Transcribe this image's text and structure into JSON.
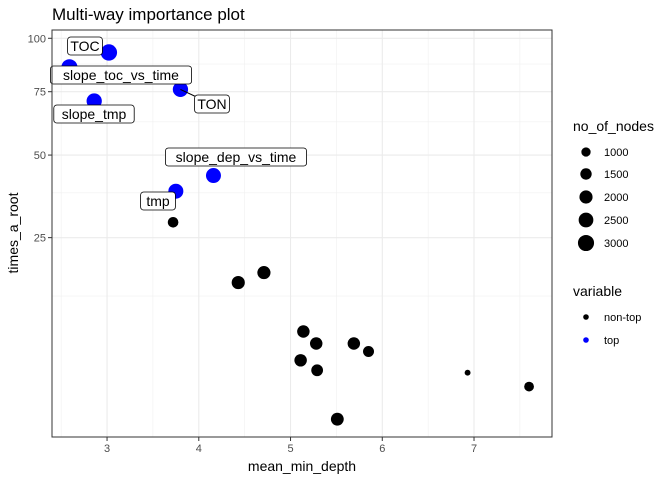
{
  "chart_data": {
    "type": "scatter",
    "title": "Multi-way importance plot",
    "xlabel": "mean_min_depth",
    "ylabel": "times_a_root",
    "x_scale": "linear",
    "y_scale": "sqrt",
    "xlim": [
      2.4,
      7.85
    ],
    "ylim": [
      0,
      100
    ],
    "x_ticks": [
      3,
      4,
      5,
      6,
      7
    ],
    "y_ticks": [
      25,
      50,
      75,
      100
    ],
    "grid": true,
    "points": [
      {
        "x": 3.02,
        "y": 93,
        "nodes": 3100,
        "variable": "top",
        "label": "TOC"
      },
      {
        "x": 2.59,
        "y": 86,
        "nodes": 3000,
        "variable": "top",
        "label": "slope_toc_vs_time"
      },
      {
        "x": 3.8,
        "y": 76,
        "nodes": 2700,
        "variable": "top",
        "label": "TON"
      },
      {
        "x": 2.86,
        "y": 71,
        "nodes": 2700,
        "variable": "top",
        "label": "slope_tmp"
      },
      {
        "x": 4.16,
        "y": 43,
        "nodes": 2600,
        "variable": "top",
        "label": "slope_dep_vs_time"
      },
      {
        "x": 3.75,
        "y": 38,
        "nodes": 2600,
        "variable": "top",
        "label": ""
      },
      {
        "x": 3.72,
        "y": 29,
        "nodes": 1300,
        "variable": "non-top",
        "label": "tmp"
      },
      {
        "x": 4.71,
        "y": 17,
        "nodes": 2000,
        "variable": "non-top",
        "label": ""
      },
      {
        "x": 4.43,
        "y": 15,
        "nodes": 2000,
        "variable": "non-top",
        "label": ""
      },
      {
        "x": 5.14,
        "y": 7,
        "nodes": 1800,
        "variable": "non-top",
        "label": ""
      },
      {
        "x": 5.28,
        "y": 5.5,
        "nodes": 1800,
        "variable": "non-top",
        "label": ""
      },
      {
        "x": 5.69,
        "y": 5.5,
        "nodes": 1800,
        "variable": "non-top",
        "label": ""
      },
      {
        "x": 5.85,
        "y": 4.6,
        "nodes": 1400,
        "variable": "non-top",
        "label": ""
      },
      {
        "x": 5.11,
        "y": 3.7,
        "nodes": 1800,
        "variable": "non-top",
        "label": ""
      },
      {
        "x": 5.29,
        "y": 2.8,
        "nodes": 1600,
        "variable": "non-top",
        "label": ""
      },
      {
        "x": 6.93,
        "y": 2.6,
        "nodes": 400,
        "variable": "non-top",
        "label": ""
      },
      {
        "x": 7.6,
        "y": 1.6,
        "nodes": 1100,
        "variable": "non-top",
        "label": ""
      },
      {
        "x": 5.51,
        "y": 0.2,
        "nodes": 1900,
        "variable": "non-top",
        "label": ""
      }
    ],
    "legend_size": {
      "title": "no_of_nodes",
      "entries": [
        {
          "label": "1000",
          "nodes": 1000
        },
        {
          "label": "1500",
          "nodes": 1500
        },
        {
          "label": "2000",
          "nodes": 2000
        },
        {
          "label": "2500",
          "nodes": 2500
        },
        {
          "label": "3000",
          "nodes": 3000
        }
      ]
    },
    "legend_color": {
      "title": "variable",
      "entries": [
        {
          "label": "non-top",
          "color": "#000000"
        },
        {
          "label": "top",
          "color": "#0000ff"
        }
      ]
    },
    "legend_position": "right",
    "colors": {
      "top": "#0000ff",
      "non-top": "#000000"
    }
  }
}
